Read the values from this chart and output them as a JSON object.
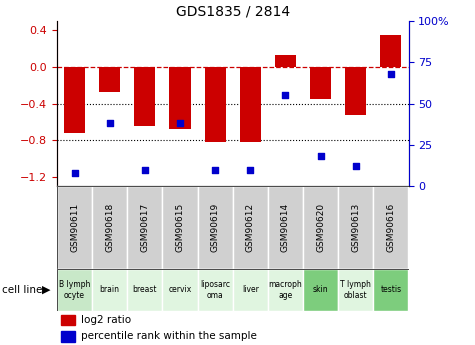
{
  "title": "GDS1835 / 2814",
  "gsm_labels": [
    "GSM90611",
    "GSM90618",
    "GSM90617",
    "GSM90615",
    "GSM90619",
    "GSM90612",
    "GSM90614",
    "GSM90620",
    "GSM90613",
    "GSM90616"
  ],
  "cell_lines": [
    "B lymph\nocyte",
    "brain",
    "breast",
    "cervix",
    "liposarc\noma",
    "liver",
    "macroph\nage",
    "skin",
    "T lymph\noblast",
    "testis"
  ],
  "cell_line_colors": [
    "#c8e8c8",
    "#e0f5e0",
    "#e0f5e0",
    "#e0f5e0",
    "#e0f5e0",
    "#e0f5e0",
    "#e0f5e0",
    "#7dcd7d",
    "#e0f5e0",
    "#7dcd7d"
  ],
  "gsm_box_color": "#d0d0d0",
  "log2_ratio": [
    -0.72,
    -0.28,
    -0.64,
    -0.68,
    -0.82,
    -0.82,
    0.13,
    -0.35,
    -0.52,
    0.35
  ],
  "percentile_rank": [
    8,
    38,
    10,
    38,
    10,
    10,
    55,
    18,
    12,
    68
  ],
  "bar_color": "#cc0000",
  "dot_color": "#0000cc",
  "left_ylim": [
    -1.3,
    0.5
  ],
  "right_ylim": [
    0,
    100
  ],
  "left_yticks": [
    -1.2,
    -0.8,
    -0.4,
    0,
    0.4
  ],
  "right_yticks": [
    0,
    25,
    50,
    75,
    100
  ],
  "right_yticklabels": [
    "0",
    "25",
    "50",
    "75",
    "100%"
  ],
  "hline_y": 0,
  "dotted_lines": [
    -0.4,
    -0.8
  ],
  "legend_items": [
    {
      "color": "#cc0000",
      "label": "log2 ratio"
    },
    {
      "color": "#0000cc",
      "label": "percentile rank within the sample"
    }
  ]
}
